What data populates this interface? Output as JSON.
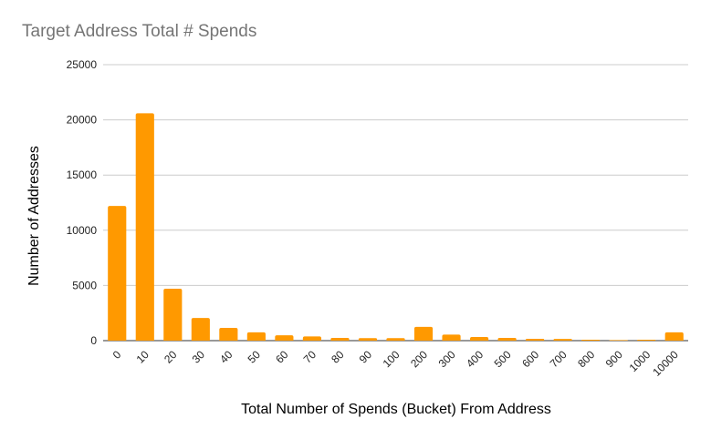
{
  "chart_data": {
    "type": "bar",
    "title": "Target Address Total # Spends",
    "xlabel": "Total Number of Spends (Bucket) From Address",
    "ylabel": "Number of Addresses",
    "categories": [
      "0",
      "10",
      "20",
      "30",
      "40",
      "50",
      "60",
      "70",
      "80",
      "90",
      "100",
      "200",
      "300",
      "400",
      "500",
      "600",
      "700",
      "800",
      "900",
      "1000",
      "10000"
    ],
    "values": [
      12200,
      20600,
      4700,
      2050,
      1150,
      750,
      480,
      380,
      250,
      230,
      230,
      1250,
      550,
      330,
      250,
      160,
      150,
      80,
      50,
      80,
      750
    ],
    "ylim": [
      0,
      25000
    ],
    "yticks": [
      0,
      5000,
      10000,
      15000,
      20000,
      25000
    ],
    "grid": true,
    "legend": "none",
    "bar_color": "#ff9900",
    "grid_color": "#cccccc",
    "axis_color": "#333333"
  }
}
